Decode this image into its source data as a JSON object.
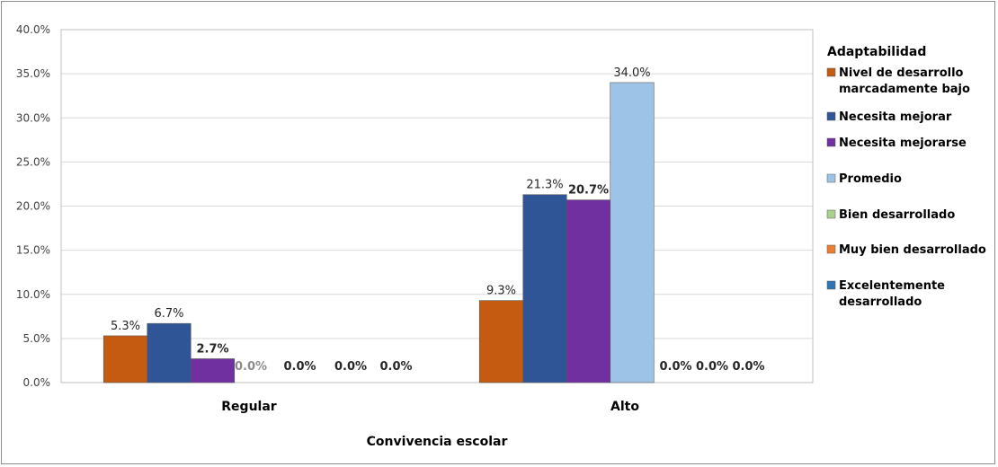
{
  "chart_data": {
    "type": "bar",
    "xlabel": "Convivencia escolar",
    "ylim": [
      0,
      40
    ],
    "y_ticks": [
      "0.0%",
      "5.0%",
      "10.0%",
      "15.0%",
      "20.0%",
      "25.0%",
      "30.0%",
      "35.0%",
      "40.0%"
    ],
    "grid": true,
    "legend_title": "Adaptabilidad",
    "legend_position": "right",
    "categories": [
      "Regular",
      "Alto"
    ],
    "series": [
      {
        "name": "Nivel de desarrollo marcadamente bajo",
        "color": "#C55A11",
        "values": [
          5.3,
          9.3
        ],
        "labels": [
          "5.3%",
          "9.3%"
        ]
      },
      {
        "name": "Necesita mejorar",
        "color": "#2F5597",
        "values": [
          6.7,
          21.3
        ],
        "labels": [
          "6.7%",
          "21.3%"
        ]
      },
      {
        "name": "Necesita mejorarse",
        "color": "#7030A0",
        "values": [
          2.7,
          20.7
        ],
        "labels": [
          "2.7%",
          "20.7%"
        ]
      },
      {
        "name": "Promedio",
        "color": "#9DC3E6",
        "values": [
          0,
          34.0
        ],
        "labels": [
          "0.0%",
          "34.0%"
        ]
      },
      {
        "name": "Bien desarrollado",
        "color": "#A9D18E",
        "values": [
          0,
          0
        ],
        "labels": [
          "0.0%",
          "0.0%"
        ]
      },
      {
        "name": "Muy bien desarrollado",
        "color": "#ED7D31",
        "values": [
          0,
          0
        ],
        "labels": [
          "0.0%",
          "0.0%"
        ]
      },
      {
        "name": "Excelentemente desarrollado",
        "color": "#2E75B6",
        "values": [
          0,
          0
        ],
        "labels": [
          "0.0%",
          "0.0%"
        ]
      }
    ]
  }
}
